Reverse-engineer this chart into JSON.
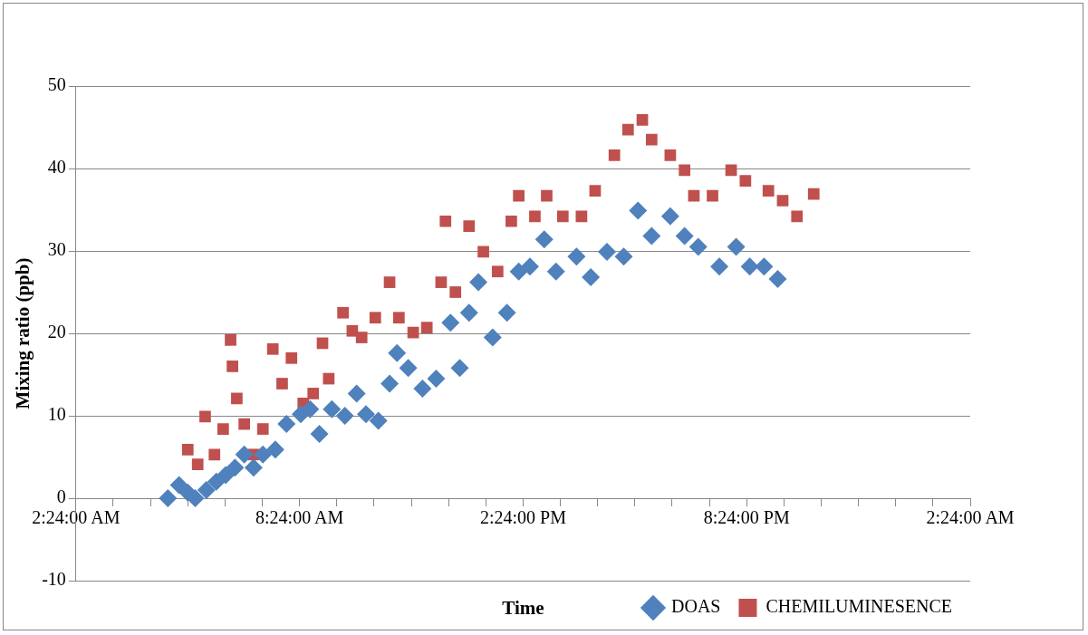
{
  "chart_data": {
    "type": "scatter",
    "xlabel": "Time",
    "ylabel": "Mixing ratio (ppb)",
    "xlim": [
      "--01-01T02:24",
      "--01-02T02:24"
    ],
    "xticks": [
      {
        "value": "--01-01T02:24",
        "label": "2:24:00 AM"
      },
      {
        "value": "--01-01T03:24",
        "label": null
      },
      {
        "value": "--01-01T04:24",
        "label": null
      },
      {
        "value": "--01-01T05:24",
        "label": null
      },
      {
        "value": "--01-01T06:24",
        "label": null
      },
      {
        "value": "--01-01T07:24",
        "label": null
      },
      {
        "value": "--01-01T08:24",
        "label": "8:24:00 AM"
      },
      {
        "value": "--01-01T09:24",
        "label": null
      },
      {
        "value": "--01-01T10:24",
        "label": null
      },
      {
        "value": "--01-01T11:24",
        "label": null
      },
      {
        "value": "--01-01T12:24",
        "label": null
      },
      {
        "value": "--01-01T13:24",
        "label": null
      },
      {
        "value": "--01-01T14:24",
        "label": "2:24:00 PM"
      },
      {
        "value": "--01-01T15:24",
        "label": null
      },
      {
        "value": "--01-01T16:24",
        "label": null
      },
      {
        "value": "--01-01T17:24",
        "label": null
      },
      {
        "value": "--01-01T18:24",
        "label": null
      },
      {
        "value": "--01-01T19:24",
        "label": null
      },
      {
        "value": "--01-01T20:24",
        "label": "8:24:00 PM"
      },
      {
        "value": "--01-01T21:24",
        "label": null
      },
      {
        "value": "--01-01T22:24",
        "label": null
      },
      {
        "value": "--01-01T23:24",
        "label": null
      },
      {
        "value": "--01-02T00:24",
        "label": null
      },
      {
        "value": "--01-02T01:24",
        "label": null
      },
      {
        "value": "--01-02T02:24",
        "label": "2:24:00 AM"
      }
    ],
    "ylim": [
      -10,
      50
    ],
    "yticks": [
      -10,
      0,
      10,
      20,
      30,
      40,
      50
    ],
    "grid": "y",
    "legend": "bottom right",
    "series": [
      {
        "name": "DOAS",
        "color": "#4f81bd",
        "marker": "diamond",
        "x": [
          "--01-01T04:52",
          "--01-01T05:10",
          "--01-01T05:24",
          "--01-01T05:36",
          "--01-01T05:54",
          "--01-01T06:10",
          "--01-01T06:25",
          "--01-01T06:40",
          "--01-01T06:55",
          "--01-01T07:10",
          "--01-01T07:25",
          "--01-01T07:45",
          "--01-01T08:03",
          "--01-01T08:26",
          "--01-01T08:41",
          "--01-01T08:56",
          "--01-01T09:16",
          "--01-01T09:37",
          "--01-01T09:56",
          "--01-01T10:11",
          "--01-01T10:31",
          "--01-01T10:49",
          "--01-01T11:01",
          "--01-01T11:19",
          "--01-01T11:42",
          "--01-01T12:04",
          "--01-01T12:27",
          "--01-01T12:42",
          "--01-01T12:57",
          "--01-01T13:12",
          "--01-01T13:35",
          "--01-01T13:58",
          "--01-01T14:17",
          "--01-01T14:35",
          "--01-01T14:58",
          "--01-01T15:17",
          "--01-01T15:50",
          "--01-01T16:13",
          "--01-01T16:39",
          "--01-01T17:06",
          "--01-01T17:29",
          "--01-01T17:51",
          "--01-01T18:21",
          "--01-01T18:44",
          "--01-01T19:06",
          "--01-01T19:40",
          "--01-01T20:07",
          "--01-01T20:29",
          "--01-01T20:52",
          "--01-01T21:14"
        ],
        "values": [
          0,
          1.6,
          0.7,
          0,
          1,
          2,
          2.8,
          3.7,
          5.3,
          3.7,
          5.3,
          5.9,
          9,
          10.2,
          10.8,
          7.8,
          10.8,
          10,
          12.7,
          10.2,
          9.4,
          13.9,
          17.6,
          15.8,
          13.3,
          14.5,
          21.3,
          15.8,
          22.5,
          26.2,
          19.5,
          22.5,
          27.5,
          28.1,
          31.4,
          27.5,
          29.3,
          26.8,
          29.9,
          29.3,
          34.9,
          31.8,
          34.2,
          31.8,
          30.5,
          28.1,
          30.5,
          28.1,
          28.1,
          26.6
        ]
      },
      {
        "name": "CHEMILUMINESENCE",
        "color": "#c0504d",
        "marker": "square",
        "x": [
          "--01-01T05:24",
          "--01-01T05:40",
          "--01-01T05:52",
          "--01-01T06:07",
          "--01-01T06:21",
          "--01-01T06:33",
          "--01-01T06:36",
          "--01-01T06:43",
          "--01-01T06:55",
          "--01-01T07:10",
          "--01-01T07:25",
          "--01-01T07:41",
          "--01-01T07:56",
          "--01-01T08:11",
          "--01-01T08:30",
          "--01-01T08:46",
          "--01-01T09:01",
          "--01-01T09:11",
          "--01-01T09:34",
          "--01-01T09:49",
          "--01-01T10:04",
          "--01-01T10:26",
          "--01-01T10:49",
          "--01-01T11:04",
          "--01-01T11:27",
          "--01-01T11:49",
          "--01-01T12:12",
          "--01-01T12:19",
          "--01-01T12:35",
          "--01-01T12:57",
          "--01-01T13:20",
          "--01-01T13:43",
          "--01-01T14:05",
          "--01-01T14:17",
          "--01-01T14:43",
          "--01-01T15:02",
          "--01-01T15:28",
          "--01-01T15:58",
          "--01-01T16:20",
          "--01-01T16:51",
          "--01-01T17:13",
          "--01-01T17:36",
          "--01-01T17:51",
          "--01-01T18:21",
          "--01-01T18:44",
          "--01-01T18:59",
          "--01-01T19:29",
          "--01-01T19:59",
          "--01-01T20:22",
          "--01-01T20:59",
          "--01-01T21:22",
          "--01-01T21:45",
          "--01-01T22:12"
        ],
        "values": [
          5.9,
          4.1,
          9.9,
          5.3,
          8.4,
          19.2,
          16,
          12.1,
          9,
          5.3,
          8.4,
          18.1,
          13.9,
          17,
          11.5,
          12.7,
          18.8,
          14.5,
          22.5,
          20.3,
          19.5,
          21.9,
          26.2,
          21.9,
          20.1,
          20.7,
          26.2,
          33.6,
          25,
          33,
          29.9,
          27.5,
          33.6,
          36.7,
          34.2,
          36.7,
          34.2,
          34.2,
          37.3,
          41.6,
          44.7,
          45.9,
          43.5,
          41.6,
          39.8,
          36.7,
          36.7,
          39.8,
          38.5,
          37.3,
          36.1,
          34.2,
          36.9
        ]
      }
    ]
  }
}
